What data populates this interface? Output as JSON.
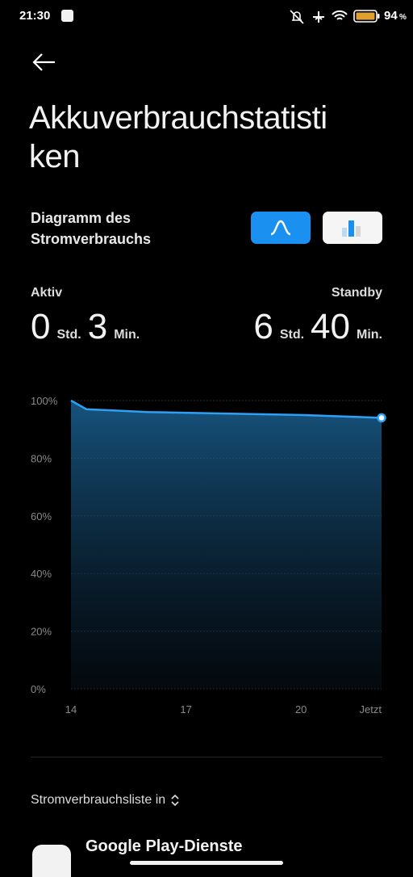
{
  "status_bar": {
    "time": "21:30",
    "battery": "94",
    "battery_unit": "%"
  },
  "header": {
    "title_lines": [
      "Akkuverbrauchstatisti",
      "ken"
    ]
  },
  "section": {
    "title_lines": [
      "Diagramm des",
      "Stromverbrauchs"
    ]
  },
  "stats": {
    "active": {
      "label": "Aktiv",
      "hours": "0",
      "hours_unit": "Std.",
      "minutes": "3",
      "minutes_unit": "Min."
    },
    "standby": {
      "label": "Standby",
      "hours": "6",
      "hours_unit": "Std.",
      "minutes": "40",
      "minutes_unit": "Min."
    }
  },
  "chart_data": {
    "type": "line",
    "x": [
      14,
      14.4,
      16,
      20,
      22.1
    ],
    "values": [
      100,
      97,
      96,
      95,
      94
    ],
    "color": "#2ea0f5",
    "xlim": [
      14,
      22.1
    ],
    "xticks": [
      14,
      17,
      20,
      {
        "value": 22.1,
        "label": "Jetzt"
      }
    ],
    "ylim": [
      0,
      100
    ],
    "yticks": [
      {
        "value": 0,
        "label": "0%"
      },
      {
        "value": 20,
        "label": "20%"
      },
      {
        "value": 40,
        "label": "40%"
      },
      {
        "value": 60,
        "label": "60%"
      },
      {
        "value": 80,
        "label": "80%"
      },
      {
        "value": 100,
        "label": "100%"
      }
    ],
    "grid": true
  },
  "list": {
    "sort_label": "Stromverbrauchsliste in",
    "apps": [
      "Google Play-Dienste"
    ]
  }
}
